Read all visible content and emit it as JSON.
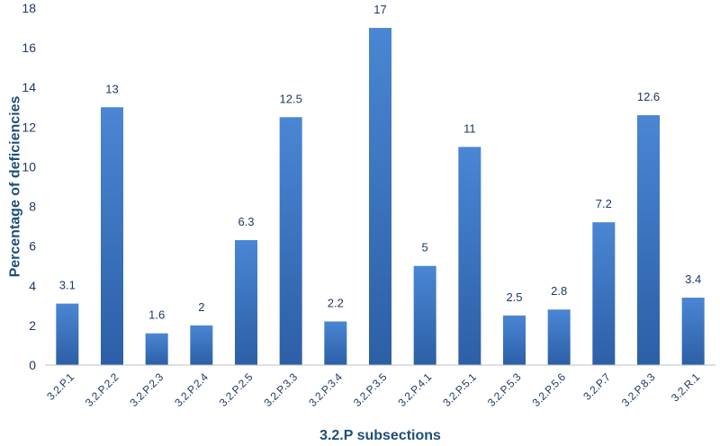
{
  "chart_data": {
    "type": "bar",
    "title": "",
    "xlabel": "3.2.P subsections",
    "ylabel": "Percentage of deficiencies",
    "ylim": [
      0,
      18
    ],
    "yticks": [
      0,
      2,
      4,
      6,
      8,
      10,
      12,
      14,
      16,
      18
    ],
    "grid": false,
    "legend": "none",
    "categories": [
      "3.2.P.1",
      "3.2.P.2.2",
      "3.2.P.2.3",
      "3.2.P.2.4",
      "3.2.P.2.5",
      "3.2.P.3.3",
      "3.2.P.3.4",
      "3.2.P.3.5",
      "3.2.P.4.1",
      "3.2.P.5.1",
      "3.2.P.5.3",
      "3.2.P.5.6",
      "3.2.P.7",
      "3.2.P.8.3",
      "3.2.R.1"
    ],
    "values": [
      3.1,
      13,
      1.6,
      2,
      6.3,
      12.5,
      2.2,
      17,
      5,
      11,
      2.5,
      2.8,
      7.2,
      12.6,
      3.4
    ],
    "data_labels": [
      "3.1",
      "13",
      "1.6",
      "2",
      "6.3",
      "12.5",
      "2.2",
      "17",
      "5",
      "11",
      "2.5",
      "2.8",
      "7.2",
      "12.6",
      "3.4"
    ],
    "colors": {
      "bar_top": "#4a86d4",
      "bar_bottom": "#2c5fa6",
      "text": "#1f3864",
      "axis_title": "#1f4e79",
      "axis_line": "#bfbfbf"
    }
  }
}
